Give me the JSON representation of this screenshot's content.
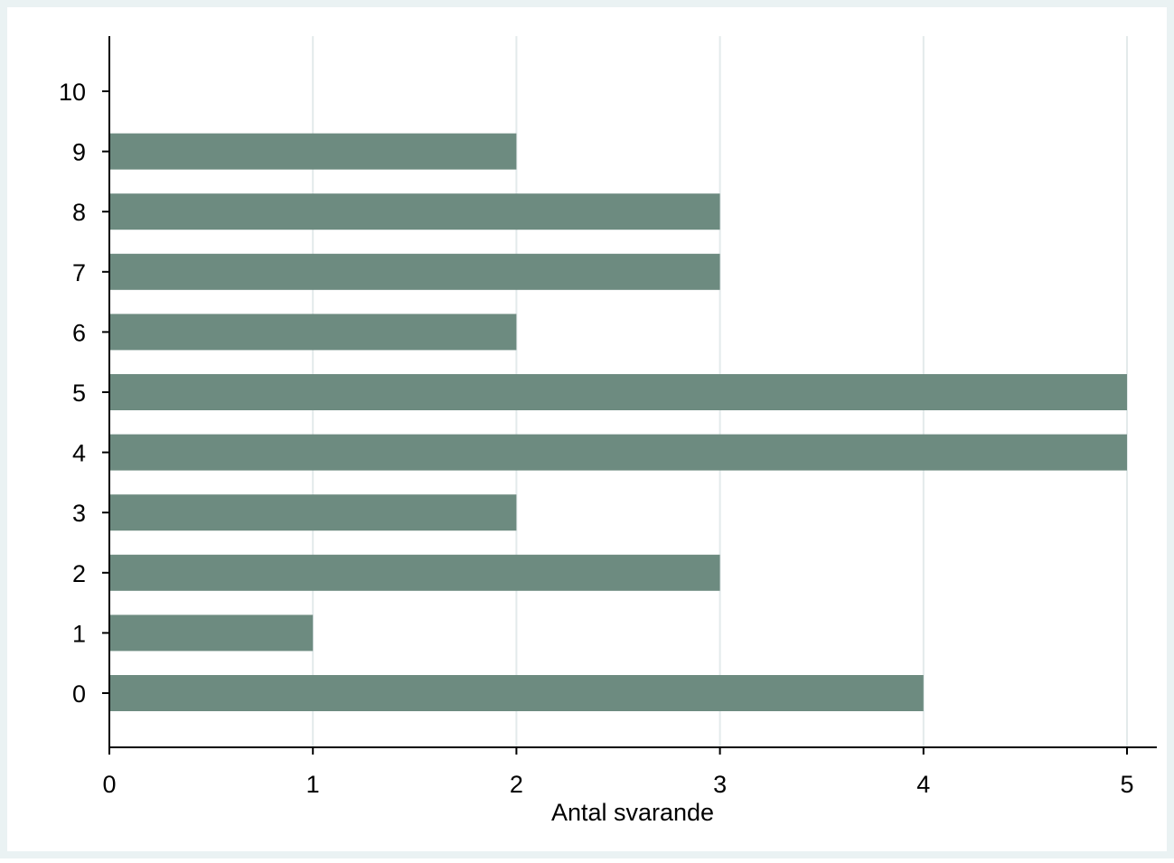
{
  "chart_data": {
    "type": "bar",
    "orientation": "horizontal",
    "categories": [
      "0",
      "1",
      "2",
      "3",
      "4",
      "5",
      "6",
      "7",
      "8",
      "9",
      "10"
    ],
    "values": [
      4,
      1,
      3,
      2,
      5,
      5,
      2,
      3,
      3,
      2,
      0
    ],
    "xlabel": "Antal svarande",
    "ylabel": "",
    "xlim": [
      0,
      5
    ],
    "xticks": [
      "0",
      "1",
      "2",
      "3",
      "4",
      "5"
    ],
    "grid": "vertical",
    "legend": "none",
    "colors": {
      "bar": "#6d8b80",
      "outer_background": "#eaf2f3",
      "plot_background": "#ffffff",
      "gridline": "#e3eaeb",
      "axis": "#000000"
    }
  }
}
